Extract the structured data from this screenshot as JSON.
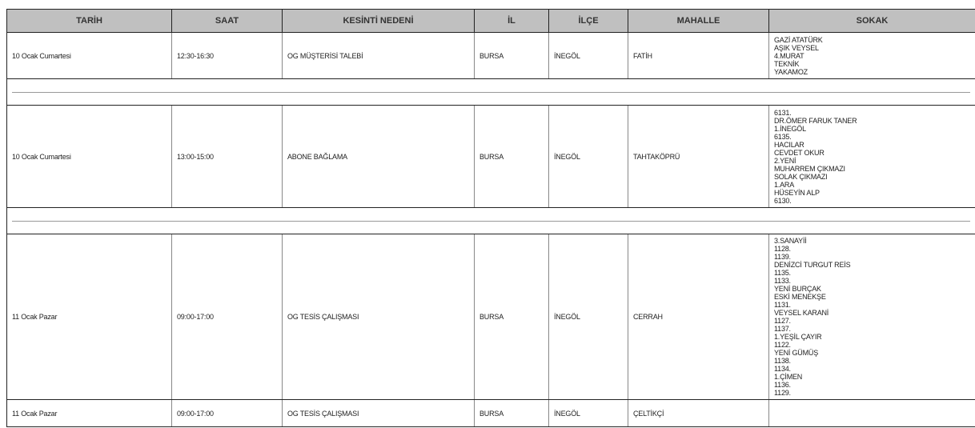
{
  "headers": [
    "TARİH",
    "SAAT",
    "KESİNTİ NEDENİ",
    "İL",
    "İLÇE",
    "MAHALLE",
    "SOKAK"
  ],
  "rows": [
    {
      "tarih": "10 Ocak Cumartesi",
      "saat": "12:30-16:30",
      "neden": "OG MÜŞTERİSİ TALEBİ",
      "il": "BURSA",
      "ilce": "İNEGÖL",
      "mahalle": "FATİH",
      "sokak": [
        "GAZİ ATATÜRK",
        "AŞIK VEYSEL",
        "4.MURAT",
        "TEKNİK",
        "YAKAMOZ"
      ],
      "separator_after": true
    },
    {
      "tarih": "10 Ocak Cumartesi",
      "saat": "13:00-15:00",
      "neden": "ABONE BAĞLAMA",
      "il": "BURSA",
      "ilce": "İNEGÖL",
      "mahalle": "TAHTAKÖPRÜ",
      "sokak": [
        "6131.",
        "DR.ÖMER FARUK TANER",
        "1.İNEGÖL",
        "6135.",
        "HACILAR",
        "CEVDET OKUR",
        "2.YENİ",
        "MUHARREM ÇIKMAZI",
        "SOLAK ÇIKMAZI",
        "1.ARA",
        "HÜSEYİN ALP",
        "6130."
      ],
      "separator_after": true
    },
    {
      "tarih": "11 Ocak Pazar",
      "saat": "09:00-17:00",
      "neden": "OG TESİS ÇALIŞMASI",
      "il": "BURSA",
      "ilce": "İNEGÖL",
      "mahalle": "CERRAH",
      "sokak": [
        "3.SANAYİİ",
        "1128.",
        "1139.",
        "DENİZCİ TURGUT REİS",
        "1135.",
        "1133.",
        "YENİ BURÇAK",
        "ESKİ MENEKŞE",
        "1131.",
        "VEYSEL KARANİ",
        "1127.",
        "1137.",
        "1.YEŞİL ÇAYIR",
        "1122.",
        "YENİ GÜMÜŞ",
        "1138.",
        "1134.",
        "1.ÇİMEN",
        "1136.",
        "1129."
      ],
      "separator_after": false
    },
    {
      "tarih": "11 Ocak Pazar",
      "saat": "09:00-17:00",
      "neden": "OG TESİS ÇALIŞMASI",
      "il": "BURSA",
      "ilce": "İNEGÖL",
      "mahalle": "ÇELTİKÇİ",
      "sokak": [],
      "separator_after": false
    }
  ]
}
